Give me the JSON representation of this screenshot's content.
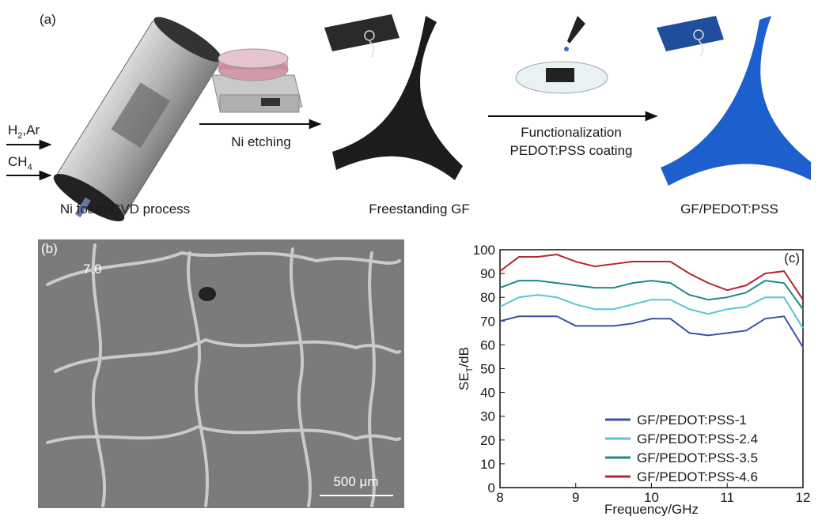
{
  "panel_a": {
    "label": "(a)",
    "gas_1": [
      "H",
      "2",
      ",Ar"
    ],
    "gas_2": [
      "CH",
      "4"
    ],
    "step_1": "Ni etching",
    "step_2": [
      "Functionalization",
      "PEDOT:PSS coating"
    ],
    "captions": [
      "Ni foam-CVD process",
      "Freestanding GF",
      "GF/PEDOT:PSS"
    ]
  },
  "panel_b": {
    "label": "(b)",
    "corner_text": "7.0",
    "scale_bar": "500 μm"
  },
  "chart_data": {
    "type": "line",
    "panel_label": "(c)",
    "x_label": "Frequency/GHz",
    "y_label": [
      "SE",
      "T",
      "/dB"
    ],
    "x": [
      8,
      8.25,
      8.5,
      8.75,
      9,
      9.25,
      9.5,
      9.75,
      10,
      10.25,
      10.5,
      10.75,
      11,
      11.25,
      11.5,
      11.75,
      12
    ],
    "series": [
      {
        "name": "GF/PEDOT:PSS-1",
        "color": "#3953a4",
        "values": [
          70,
          72,
          72,
          72,
          68,
          68,
          68,
          69,
          71,
          71,
          65,
          64,
          65,
          66,
          71,
          72,
          59
        ]
      },
      {
        "name": "GF/PEDOT:PSS-2.4",
        "color": "#5bc5d6",
        "values": [
          76,
          80,
          81,
          80,
          77,
          75,
          75,
          77,
          79,
          79,
          75,
          73,
          75,
          76,
          80,
          80,
          67
        ]
      },
      {
        "name": "GF/PEDOT:PSS-3.5",
        "color": "#1f8a84",
        "values": [
          84,
          87,
          87,
          86,
          85,
          84,
          84,
          86,
          87,
          86,
          81,
          79,
          80,
          82,
          87,
          86,
          75
        ]
      },
      {
        "name": "GF/PEDOT:PSS-4.6",
        "color": "#b2282e",
        "values": [
          91,
          97,
          97,
          98,
          95,
          93,
          94,
          95,
          95,
          95,
          90,
          86,
          83,
          85,
          90,
          91,
          79
        ]
      }
    ],
    "xlim": [
      8,
      12
    ],
    "xticks": [
      8,
      9,
      10,
      11,
      12
    ],
    "ylim": [
      0,
      100
    ],
    "yticks": [
      0,
      10,
      20,
      30,
      40,
      50,
      60,
      70,
      80,
      90,
      100
    ],
    "legend": "lower right"
  }
}
